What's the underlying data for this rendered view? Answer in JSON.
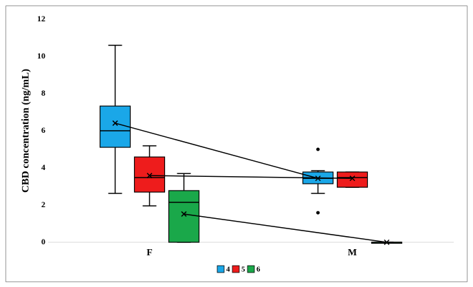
{
  "chart_data": {
    "type": "box",
    "y_label": "CBD concentration (ng/mL)",
    "categories": [
      "F",
      "M"
    ],
    "ylim": [
      0,
      12
    ],
    "yticks": [
      0,
      2,
      4,
      6,
      8,
      10,
      12
    ],
    "series": [
      {
        "name": "4",
        "color": "#1aa7e8",
        "values": [
          {
            "min": 2.63,
            "q1": 5.11,
            "median": 6.0,
            "q3": 7.33,
            "max": 10.6,
            "mean": 6.41,
            "outliers": []
          },
          {
            "min": 2.63,
            "q1": 3.15,
            "median": 3.44,
            "q3": 3.78,
            "max": 3.85,
            "mean": 3.44,
            "outliers": [
              5.0,
              1.59
            ]
          }
        ]
      },
      {
        "name": "5",
        "color": "#ee1c1c",
        "values": [
          {
            "min": 1.96,
            "q1": 2.7,
            "median": 3.48,
            "q3": 4.59,
            "max": 5.19,
            "mean": 3.59,
            "outliers": []
          },
          {
            "min": 2.96,
            "q1": 2.96,
            "median": 3.48,
            "q3": 3.78,
            "max": 3.78,
            "mean": 3.44,
            "outliers": []
          }
        ]
      },
      {
        "name": "6",
        "color": "#1aa84a",
        "values": [
          {
            "min": 0,
            "q1": 0,
            "median": 2.15,
            "q3": 2.78,
            "max": 3.7,
            "mean": 1.52,
            "outliers": []
          },
          {
            "min": 0,
            "q1": 0,
            "median": 0,
            "q3": 0,
            "max": 0,
            "mean": 0,
            "outliers": []
          }
        ]
      }
    ]
  }
}
